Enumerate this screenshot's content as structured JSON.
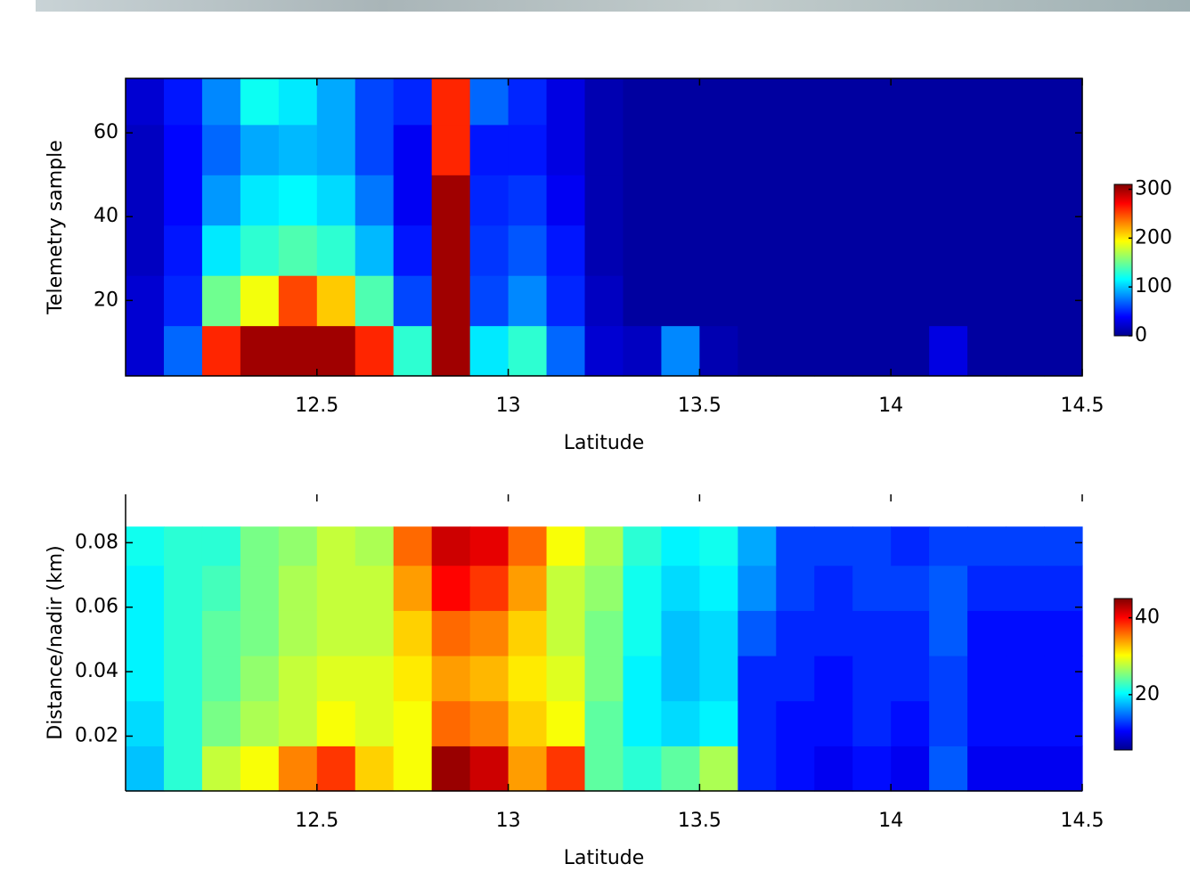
{
  "chart_data": [
    {
      "type": "heatmap",
      "xlabel": "Latitude",
      "ylabel": "Telemetry sample",
      "colormap": "jet",
      "box": true,
      "xlim": [
        12,
        14.5
      ],
      "ylim": [
        2,
        73
      ],
      "xticks": [
        12.5,
        13,
        13.5,
        14,
        14.5
      ],
      "yticks": [
        20,
        40,
        60
      ],
      "clim": [
        0,
        310
      ],
      "cticks": [
        0,
        100,
        200,
        300
      ],
      "x": [
        12,
        12.1,
        12.2,
        12.3,
        12.4,
        12.5,
        12.6,
        12.7,
        12.8,
        12.9,
        13,
        13.1,
        13.2,
        13.3,
        13.4,
        13.5,
        13.6,
        13.7,
        13.8,
        13.9,
        14,
        14.1,
        14.2,
        14.3,
        14.4,
        14.5
      ],
      "y": [
        2,
        14,
        26,
        38,
        50,
        62,
        73
      ],
      "z": [
        [
          25,
          70,
          260,
          300,
          300,
          300,
          260,
          130,
          300,
          110,
          130,
          70,
          25,
          20,
          80,
          15,
          10,
          10,
          10,
          10,
          10,
          30,
          10,
          10,
          10
        ],
        [
          25,
          50,
          150,
          190,
          250,
          210,
          140,
          60,
          300,
          60,
          80,
          50,
          20,
          10,
          10,
          10,
          10,
          10,
          10,
          10,
          10,
          10,
          10,
          10,
          10
        ],
        [
          20,
          45,
          110,
          130,
          140,
          130,
          95,
          45,
          300,
          55,
          65,
          45,
          15,
          10,
          10,
          10,
          10,
          10,
          10,
          10,
          10,
          10,
          10,
          10,
          10
        ],
        [
          20,
          40,
          85,
          110,
          115,
          105,
          75,
          35,
          300,
          50,
          55,
          35,
          15,
          10,
          10,
          10,
          10,
          10,
          10,
          10,
          10,
          10,
          10,
          10,
          10
        ],
        [
          20,
          40,
          70,
          90,
          95,
          90,
          60,
          35,
          260,
          45,
          45,
          30,
          15,
          10,
          10,
          10,
          10,
          10,
          10,
          10,
          10,
          10,
          10,
          10,
          10
        ],
        [
          25,
          45,
          80,
          120,
          110,
          90,
          60,
          50,
          260,
          70,
          50,
          30,
          15,
          10,
          10,
          10,
          10,
          10,
          10,
          10,
          10,
          10,
          10,
          10,
          10
        ]
      ]
    },
    {
      "type": "heatmap",
      "xlabel": "Latitude",
      "ylabel": "Distance/nadir (km)",
      "colormap": "jet",
      "box": false,
      "xlim": [
        12,
        14.5
      ],
      "ylim": [
        0.003,
        0.095
      ],
      "xticks": [
        12.5,
        13,
        13.5,
        14,
        14.5
      ],
      "yticks": [
        0.02,
        0.04,
        0.06,
        0.08
      ],
      "clim": [
        5.6,
        45
      ],
      "cticks": [
        20,
        40
      ],
      "x": [
        12,
        12.1,
        12.2,
        12.3,
        12.4,
        12.5,
        12.6,
        12.7,
        12.8,
        12.9,
        13,
        13.1,
        13.2,
        13.3,
        13.4,
        13.5,
        13.6,
        13.7,
        13.8,
        13.9,
        14,
        14.1,
        14.2,
        14.3,
        14.4,
        14.5
      ],
      "y": [
        0.003,
        0.017,
        0.031,
        0.045,
        0.059,
        0.073,
        0.085
      ],
      "z": [
        [
          18,
          22,
          28,
          30,
          35,
          38,
          32,
          30,
          44,
          42,
          34,
          38,
          24,
          22,
          24,
          27,
          12,
          11,
          10,
          11,
          10,
          14,
          10,
          10,
          10
        ],
        [
          19,
          22,
          25,
          27,
          28,
          30,
          29,
          30,
          36,
          35,
          32,
          30,
          24,
          20,
          19,
          20,
          12,
          11,
          11,
          12,
          11,
          13,
          11,
          11,
          11
        ],
        [
          20,
          22,
          24,
          26,
          28,
          29,
          29,
          31,
          34,
          33,
          31,
          29,
          25,
          20,
          18,
          19,
          12,
          12,
          11,
          12,
          12,
          13,
          11,
          11,
          11
        ],
        [
          20,
          22,
          24,
          25,
          27,
          28,
          28,
          32,
          36,
          35,
          32,
          28,
          25,
          21,
          18,
          19,
          14,
          12,
          12,
          12,
          12,
          14,
          11,
          11,
          11
        ],
        [
          20,
          22,
          23,
          25,
          27,
          28,
          28,
          34,
          40,
          38,
          34,
          28,
          26,
          21,
          19,
          20,
          16,
          13,
          12,
          13,
          13,
          14,
          12,
          12,
          12
        ],
        [
          21,
          22,
          22,
          25,
          26,
          28,
          27,
          36,
          42,
          41,
          36,
          30,
          27,
          22,
          20,
          21,
          17,
          13,
          13,
          13,
          12,
          13,
          13,
          13,
          13
        ]
      ]
    }
  ]
}
